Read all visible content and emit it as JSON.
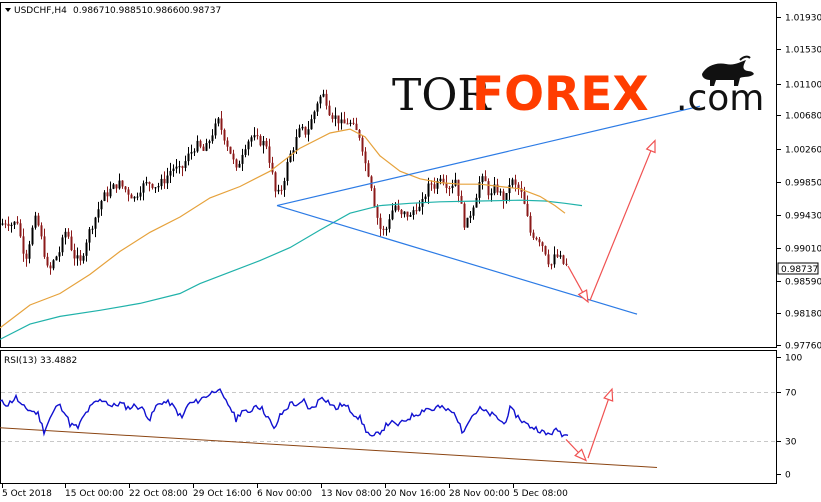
{
  "header": {
    "symbol": "USDCHF,H4",
    "open": "0.98671",
    "high": "0.98851",
    "low": "0.98660",
    "close": "0.98737"
  },
  "logo": {
    "part1": "TOR",
    "part2": "FOREX",
    "part3": ".com"
  },
  "colors": {
    "bull": "#000000",
    "bear": "#8b1a1a",
    "ma_fast": "#e6a23c",
    "ma_slow": "#20b2aa",
    "trendline": "#2c7be5",
    "forecast_arrow": "#f05252",
    "rsi_line": "#1010d0",
    "rsi_trendline": "#8b4513",
    "price_tag_bg": "#ffffff"
  },
  "chart_data": [
    {
      "type": "candlestick",
      "title": "USDCHF,H4",
      "ylim": [
        0.9765,
        1.0215
      ],
      "y_ticks": [
        "1.01930",
        "1.01530",
        "1.01100",
        "1.00680",
        "1.00260",
        "0.99850",
        "0.99430",
        "0.99010",
        "0.98590",
        "0.98180",
        "0.97760"
      ],
      "x_ticks": [
        "5 Oct 2018",
        "15 Oct 00:00",
        "22 Oct 08:00",
        "29 Oct 16:00",
        "6 Nov 00:00",
        "13 Nov 08:00",
        "20 Nov 16:00",
        "28 Nov 00:00",
        "5 Dec 08:00"
      ],
      "last_price_label": "0.98737",
      "close_path": [
        [
          0,
          0.9925
        ],
        [
          6,
          0.993
        ],
        [
          12,
          0.9925
        ],
        [
          17,
          0.993
        ],
        [
          22,
          0.9895
        ],
        [
          26,
          0.9885
        ],
        [
          31,
          0.9915
        ],
        [
          36,
          0.9935
        ],
        [
          43,
          0.9895
        ],
        [
          48,
          0.986
        ],
        [
          54,
          0.988
        ],
        [
          59,
          0.989
        ],
        [
          66,
          0.992
        ],
        [
          73,
          0.9885
        ],
        [
          80,
          0.9875
        ],
        [
          87,
          0.991
        ],
        [
          95,
          0.9935
        ],
        [
          102,
          0.996
        ],
        [
          110,
          0.997
        ],
        [
          118,
          0.998
        ],
        [
          126,
          0.997
        ],
        [
          134,
          0.996
        ],
        [
          141,
          0.9975
        ],
        [
          149,
          0.998
        ],
        [
          157,
          0.9975
        ],
        [
          165,
          0.9985
        ],
        [
          172,
          1.0
        ],
        [
          180,
          0.9995
        ],
        [
          188,
          1.0015
        ],
        [
          196,
          1.003
        ],
        [
          204,
          1.002
        ],
        [
          212,
          1.0045
        ],
        [
          218,
          1.006
        ],
        [
          224,
          1.004
        ],
        [
          230,
          1.002
        ],
        [
          236,
          0.9995
        ],
        [
          243,
          1.0025
        ],
        [
          250,
          1.004
        ],
        [
          258,
          1.0035
        ],
        [
          266,
          1.003
        ],
        [
          272,
          0.999
        ],
        [
          276,
          0.996
        ],
        [
          282,
          0.9975
        ],
        [
          288,
          1.001
        ],
        [
          294,
          1.003
        ],
        [
          300,
          1.005
        ],
        [
          306,
          1.0045
        ],
        [
          312,
          1.0065
        ],
        [
          318,
          1.009
        ],
        [
          324,
          1.0095
        ],
        [
          330,
          1.007
        ],
        [
          336,
          1.0065
        ],
        [
          342,
          1.0055
        ],
        [
          348,
          1.006
        ],
        [
          354,
          1.005
        ],
        [
          360,
          1.004
        ],
        [
          365,
          1.0005
        ],
        [
          370,
          0.9985
        ],
        [
          375,
          0.9945
        ],
        [
          380,
          0.992
        ],
        [
          385,
          0.9915
        ],
        [
          390,
          0.994
        ],
        [
          395,
          0.995
        ],
        [
          400,
          0.9935
        ],
        [
          405,
          0.994
        ],
        [
          410,
          0.9935
        ],
        [
          415,
          0.995
        ],
        [
          420,
          0.9945
        ],
        [
          425,
          0.9965
        ],
        [
          430,
          0.998
        ],
        [
          435,
          0.9975
        ],
        [
          440,
          0.999
        ],
        [
          445,
          0.998
        ],
        [
          450,
          0.9975
        ],
        [
          455,
          0.9985
        ],
        [
          460,
          0.9955
        ],
        [
          465,
          0.992
        ],
        [
          470,
          0.994
        ],
        [
          475,
          0.996
        ],
        [
          480,
          0.9985
        ],
        [
          485,
          0.998
        ],
        [
          490,
          0.996
        ],
        [
          495,
          0.9975
        ],
        [
          500,
          0.9965
        ],
        [
          505,
          0.9955
        ],
        [
          510,
          0.9985
        ],
        [
          515,
          0.9975
        ],
        [
          520,
          0.997
        ],
        [
          525,
          0.9945
        ],
        [
          530,
          0.9915
        ],
        [
          535,
          0.991
        ],
        [
          540,
          0.9905
        ],
        [
          545,
          0.989
        ],
        [
          550,
          0.987
        ],
        [
          555,
          0.9885
        ],
        [
          560,
          0.988
        ],
        [
          565,
          0.987
        ],
        [
          568,
          0.98737
        ]
      ],
      "ma_fast_path": [
        [
          0,
          0.979
        ],
        [
          30,
          0.982
        ],
        [
          60,
          0.9835
        ],
        [
          90,
          0.986
        ],
        [
          120,
          0.989
        ],
        [
          150,
          0.9915
        ],
        [
          180,
          0.9935
        ],
        [
          210,
          0.996
        ],
        [
          240,
          0.9975
        ],
        [
          270,
          0.9995
        ],
        [
          300,
          1.0025
        ],
        [
          330,
          1.0045
        ],
        [
          350,
          1.005
        ],
        [
          365,
          1.004
        ],
        [
          380,
          1.0015
        ],
        [
          400,
          0.9995
        ],
        [
          420,
          0.9985
        ],
        [
          440,
          0.998
        ],
        [
          460,
          0.9978
        ],
        [
          480,
          0.9978
        ],
        [
          500,
          0.9975
        ],
        [
          520,
          0.9972
        ],
        [
          540,
          0.9962
        ],
        [
          555,
          0.995
        ],
        [
          565,
          0.994
        ]
      ],
      "ma_slow_path": [
        [
          0,
          0.9775
        ],
        [
          30,
          0.9795
        ],
        [
          60,
          0.9805
        ],
        [
          100,
          0.9813
        ],
        [
          140,
          0.9822
        ],
        [
          180,
          0.9835
        ],
        [
          200,
          0.9848
        ],
        [
          230,
          0.9863
        ],
        [
          260,
          0.9878
        ],
        [
          290,
          0.9895
        ],
        [
          320,
          0.9918
        ],
        [
          350,
          0.994
        ],
        [
          380,
          0.995
        ],
        [
          410,
          0.9953
        ],
        [
          440,
          0.9955
        ],
        [
          480,
          0.9956
        ],
        [
          520,
          0.9957
        ],
        [
          545,
          0.9956
        ],
        [
          565,
          0.9953
        ],
        [
          582,
          0.995
        ]
      ],
      "trendlines": [
        {
          "from": [
            277,
            0.995
          ],
          "to": [
            700,
            1.008
          ]
        },
        {
          "from": [
            277,
            0.995
          ],
          "to": [
            637,
            0.9808
          ]
        }
      ],
      "forecast_arrows": [
        {
          "from": [
            568,
            0.9871
          ],
          "to": [
            588,
            0.9824
          ]
        },
        {
          "from": [
            590,
            0.9826
          ],
          "to": [
            655,
            1.0035
          ]
        }
      ]
    },
    {
      "type": "line",
      "title": "RSI(13)",
      "indicator_value": "33.4882",
      "ylim": [
        0,
        100
      ],
      "y_ticks": [
        "100",
        "70",
        "30",
        "0"
      ],
      "levels": [
        70,
        30
      ],
      "values_path": [
        [
          0,
          62
        ],
        [
          8,
          60
        ],
        [
          16,
          66
        ],
        [
          22,
          58
        ],
        [
          30,
          55
        ],
        [
          38,
          52
        ],
        [
          44,
          37
        ],
        [
          50,
          48
        ],
        [
          58,
          60
        ],
        [
          64,
          55
        ],
        [
          70,
          43
        ],
        [
          78,
          40
        ],
        [
          84,
          50
        ],
        [
          90,
          57
        ],
        [
          96,
          62
        ],
        [
          104,
          64
        ],
        [
          112,
          58
        ],
        [
          120,
          61
        ],
        [
          128,
          57
        ],
        [
          136,
          59
        ],
        [
          144,
          55
        ],
        [
          150,
          47
        ],
        [
          156,
          58
        ],
        [
          162,
          62
        ],
        [
          170,
          61
        ],
        [
          176,
          55
        ],
        [
          182,
          48
        ],
        [
          188,
          60
        ],
        [
          196,
          62
        ],
        [
          204,
          66
        ],
        [
          212,
          70
        ],
        [
          218,
          74
        ],
        [
          224,
          64
        ],
        [
          230,
          58
        ],
        [
          236,
          47
        ],
        [
          242,
          55
        ],
        [
          248,
          52
        ],
        [
          256,
          60
        ],
        [
          262,
          56
        ],
        [
          268,
          49
        ],
        [
          274,
          38
        ],
        [
          280,
          50
        ],
        [
          286,
          56
        ],
        [
          292,
          62
        ],
        [
          298,
          58
        ],
        [
          304,
          63
        ],
        [
          310,
          55
        ],
        [
          316,
          60
        ],
        [
          322,
          67
        ],
        [
          330,
          61
        ],
        [
          336,
          56
        ],
        [
          342,
          60
        ],
        [
          348,
          57
        ],
        [
          354,
          52
        ],
        [
          360,
          48
        ],
        [
          366,
          38
        ],
        [
          372,
          31
        ],
        [
          378,
          35
        ],
        [
          384,
          40
        ],
        [
          390,
          45
        ],
        [
          396,
          42
        ],
        [
          402,
          44
        ],
        [
          408,
          48
        ],
        [
          414,
          51
        ],
        [
          420,
          53
        ],
        [
          426,
          57
        ],
        [
          432,
          55
        ],
        [
          438,
          58
        ],
        [
          444,
          56
        ],
        [
          450,
          54
        ],
        [
          456,
          51
        ],
        [
          462,
          36
        ],
        [
          468,
          46
        ],
        [
          474,
          52
        ],
        [
          480,
          56
        ],
        [
          486,
          53
        ],
        [
          492,
          51
        ],
        [
          498,
          48
        ],
        [
          504,
          43
        ],
        [
          510,
          56
        ],
        [
          516,
          51
        ],
        [
          522,
          46
        ],
        [
          528,
          42
        ],
        [
          534,
          40
        ],
        [
          540,
          38
        ],
        [
          546,
          34
        ],
        [
          552,
          36
        ],
        [
          558,
          38
        ],
        [
          563,
          34
        ],
        [
          568,
          33.4882
        ]
      ],
      "trendlines": [
        {
          "from": [
            0,
            40
          ],
          "to": [
            657,
            6
          ]
        }
      ],
      "forecast_arrows": [
        {
          "from": [
            566,
            30
          ],
          "to": [
            586,
            12
          ]
        },
        {
          "from": [
            588,
            14
          ],
          "to": [
            612,
            73
          ]
        }
      ]
    }
  ]
}
